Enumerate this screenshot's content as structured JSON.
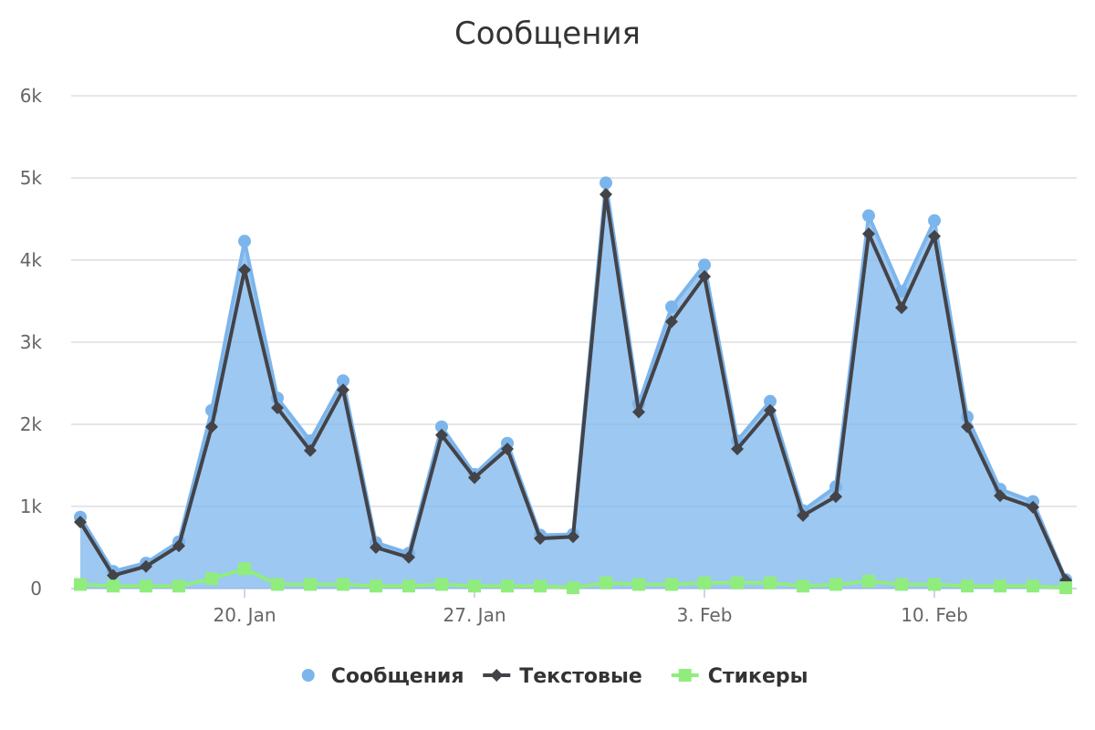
{
  "chart_data": {
    "type": "line",
    "title": "Сообщения",
    "subtitle": "",
    "xlabel": "",
    "ylabel": "",
    "x": [
      "2025-01-15",
      "2025-01-16",
      "2025-01-17",
      "2025-01-18",
      "2025-01-19",
      "2025-01-20",
      "2025-01-21",
      "2025-01-22",
      "2025-01-23",
      "2025-01-24",
      "2025-01-25",
      "2025-01-26",
      "2025-01-27",
      "2025-01-28",
      "2025-01-29",
      "2025-01-30",
      "2025-01-31",
      "2025-02-01",
      "2025-02-02",
      "2025-02-03",
      "2025-02-04",
      "2025-02-05",
      "2025-02-06",
      "2025-02-07",
      "2025-02-08",
      "2025-02-09",
      "2025-02-10",
      "2025-02-11",
      "2025-02-12",
      "2025-02-13",
      "2025-02-14"
    ],
    "x_tick_labels": [
      "20. Jan",
      "27. Jan",
      "3. Feb",
      "10. Feb"
    ],
    "x_tick_dates": [
      "2025-01-20",
      "2025-01-27",
      "2025-02-03",
      "2025-02-10"
    ],
    "y_tick_labels": [
      "0",
      "1k",
      "2k",
      "3k",
      "4k",
      "5k",
      "6k"
    ],
    "ylim": [
      0,
      6000
    ],
    "grid": true,
    "legend_position": "bottom-center",
    "series": [
      {
        "name": "Сообщения",
        "style": "area",
        "marker": "circle",
        "color": "#7cb5ec",
        "values": [
          870,
          210,
          310,
          570,
          2170,
          4230,
          2320,
          1800,
          2530,
          560,
          430,
          1970,
          1390,
          1770,
          650,
          660,
          4940,
          2250,
          3430,
          3940,
          1800,
          2280,
          950,
          1240,
          4540,
          3620,
          4480,
          2090,
          1210,
          1060,
          110
        ]
      },
      {
        "name": "Текстовые",
        "style": "line",
        "marker": "diamond",
        "color": "#434348",
        "values": [
          810,
          160,
          270,
          520,
          1970,
          3880,
          2200,
          1680,
          2420,
          500,
          380,
          1870,
          1350,
          1700,
          610,
          630,
          4800,
          2150,
          3250,
          3800,
          1700,
          2170,
          890,
          1120,
          4320,
          3420,
          4290,
          1970,
          1130,
          990,
          100
        ]
      },
      {
        "name": "Стикеры",
        "style": "line",
        "marker": "square",
        "color": "#90ed7d",
        "values": [
          50,
          30,
          30,
          30,
          120,
          240,
          50,
          50,
          50,
          30,
          30,
          50,
          30,
          30,
          30,
          10,
          70,
          50,
          50,
          70,
          70,
          70,
          30,
          50,
          90,
          50,
          50,
          30,
          30,
          30,
          10
        ]
      }
    ]
  }
}
